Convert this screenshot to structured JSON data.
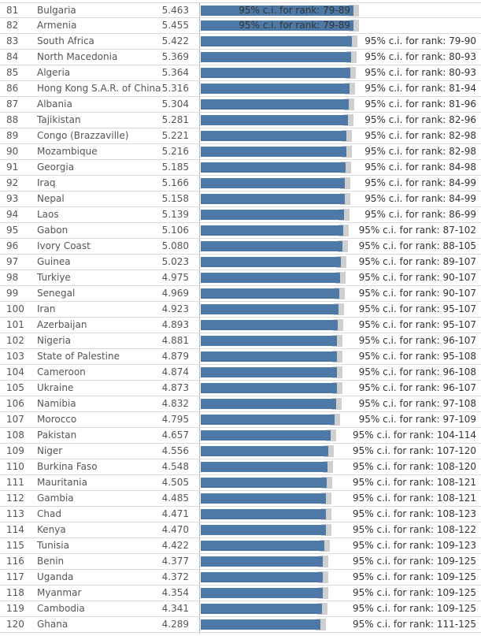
{
  "chart_data": {
    "type": "bar",
    "label_template": "95% c.i. for rank: ",
    "color_bar": "#4e79a7",
    "color_ci": "#cfcfcf",
    "rows": [
      {
        "rank": "81",
        "country": "Bulgaria",
        "score": "5.463",
        "value": 5.463,
        "ci": "79-89"
      },
      {
        "rank": "82",
        "country": "Armenia",
        "score": "5.455",
        "value": 5.455,
        "ci": "79-89"
      },
      {
        "rank": "83",
        "country": "South Africa",
        "score": "5.422",
        "value": 5.422,
        "ci": "79-90"
      },
      {
        "rank": "84",
        "country": "North Macedonia",
        "score": "5.369",
        "value": 5.369,
        "ci": "80-93"
      },
      {
        "rank": "85",
        "country": "Algeria",
        "score": "5.364",
        "value": 5.364,
        "ci": "80-93"
      },
      {
        "rank": "86",
        "country": "Hong Kong S.A.R. of China",
        "score": "5.316",
        "value": 5.316,
        "ci": "81-94"
      },
      {
        "rank": "87",
        "country": "Albania",
        "score": "5.304",
        "value": 5.304,
        "ci": "81-96"
      },
      {
        "rank": "88",
        "country": "Tajikistan",
        "score": "5.281",
        "value": 5.281,
        "ci": "82-96"
      },
      {
        "rank": "89",
        "country": "Congo (Brazzaville)",
        "score": "5.221",
        "value": 5.221,
        "ci": "82-98"
      },
      {
        "rank": "90",
        "country": "Mozambique",
        "score": "5.216",
        "value": 5.216,
        "ci": "82-98"
      },
      {
        "rank": "91",
        "country": "Georgia",
        "score": "5.185",
        "value": 5.185,
        "ci": "84-98"
      },
      {
        "rank": "92",
        "country": "Iraq",
        "score": "5.166",
        "value": 5.166,
        "ci": "84-99"
      },
      {
        "rank": "93",
        "country": "Nepal",
        "score": "5.158",
        "value": 5.158,
        "ci": "84-99"
      },
      {
        "rank": "94",
        "country": "Laos",
        "score": "5.139",
        "value": 5.139,
        "ci": "86-99"
      },
      {
        "rank": "95",
        "country": "Gabon",
        "score": "5.106",
        "value": 5.106,
        "ci": "87-102"
      },
      {
        "rank": "96",
        "country": "Ivory Coast",
        "score": "5.080",
        "value": 5.08,
        "ci": "88-105"
      },
      {
        "rank": "97",
        "country": "Guinea",
        "score": "5.023",
        "value": 5.023,
        "ci": "89-107"
      },
      {
        "rank": "98",
        "country": "Turkiye",
        "score": "4.975",
        "value": 4.975,
        "ci": "90-107"
      },
      {
        "rank": "99",
        "country": "Senegal",
        "score": "4.969",
        "value": 4.969,
        "ci": "90-107"
      },
      {
        "rank": "100",
        "country": "Iran",
        "score": "4.923",
        "value": 4.923,
        "ci": "95-107"
      },
      {
        "rank": "101",
        "country": "Azerbaijan",
        "score": "4.893",
        "value": 4.893,
        "ci": "95-107"
      },
      {
        "rank": "102",
        "country": "Nigeria",
        "score": "4.881",
        "value": 4.881,
        "ci": "96-107"
      },
      {
        "rank": "103",
        "country": "State of Palestine",
        "score": "4.879",
        "value": 4.879,
        "ci": "95-108"
      },
      {
        "rank": "104",
        "country": "Cameroon",
        "score": "4.874",
        "value": 4.874,
        "ci": "96-108"
      },
      {
        "rank": "105",
        "country": "Ukraine",
        "score": "4.873",
        "value": 4.873,
        "ci": "96-107"
      },
      {
        "rank": "106",
        "country": "Namibia",
        "score": "4.832",
        "value": 4.832,
        "ci": "97-108"
      },
      {
        "rank": "107",
        "country": "Morocco",
        "score": "4.795",
        "value": 4.795,
        "ci": "97-109"
      },
      {
        "rank": "108",
        "country": "Pakistan",
        "score": "4.657",
        "value": 4.657,
        "ci": "104-114"
      },
      {
        "rank": "109",
        "country": "Niger",
        "score": "4.556",
        "value": 4.556,
        "ci": "107-120"
      },
      {
        "rank": "110",
        "country": "Burkina Faso",
        "score": "4.548",
        "value": 4.548,
        "ci": "108-120"
      },
      {
        "rank": "111",
        "country": "Mauritania",
        "score": "4.505",
        "value": 4.505,
        "ci": "108-121"
      },
      {
        "rank": "112",
        "country": "Gambia",
        "score": "4.485",
        "value": 4.485,
        "ci": "108-121"
      },
      {
        "rank": "113",
        "country": "Chad",
        "score": "4.471",
        "value": 4.471,
        "ci": "108-123"
      },
      {
        "rank": "114",
        "country": "Kenya",
        "score": "4.470",
        "value": 4.47,
        "ci": "108-122"
      },
      {
        "rank": "115",
        "country": "Tunisia",
        "score": "4.422",
        "value": 4.422,
        "ci": "109-123"
      },
      {
        "rank": "116",
        "country": "Benin",
        "score": "4.377",
        "value": 4.377,
        "ci": "109-125"
      },
      {
        "rank": "117",
        "country": "Uganda",
        "score": "4.372",
        "value": 4.372,
        "ci": "109-125"
      },
      {
        "rank": "118",
        "country": "Myanmar",
        "score": "4.354",
        "value": 4.354,
        "ci": "109-125"
      },
      {
        "rank": "119",
        "country": "Cambodia",
        "score": "4.341",
        "value": 4.341,
        "ci": "109-125"
      },
      {
        "rank": "120",
        "country": "Ghana",
        "score": "4.289",
        "value": 4.289,
        "ci": "111-125"
      }
    ]
  }
}
